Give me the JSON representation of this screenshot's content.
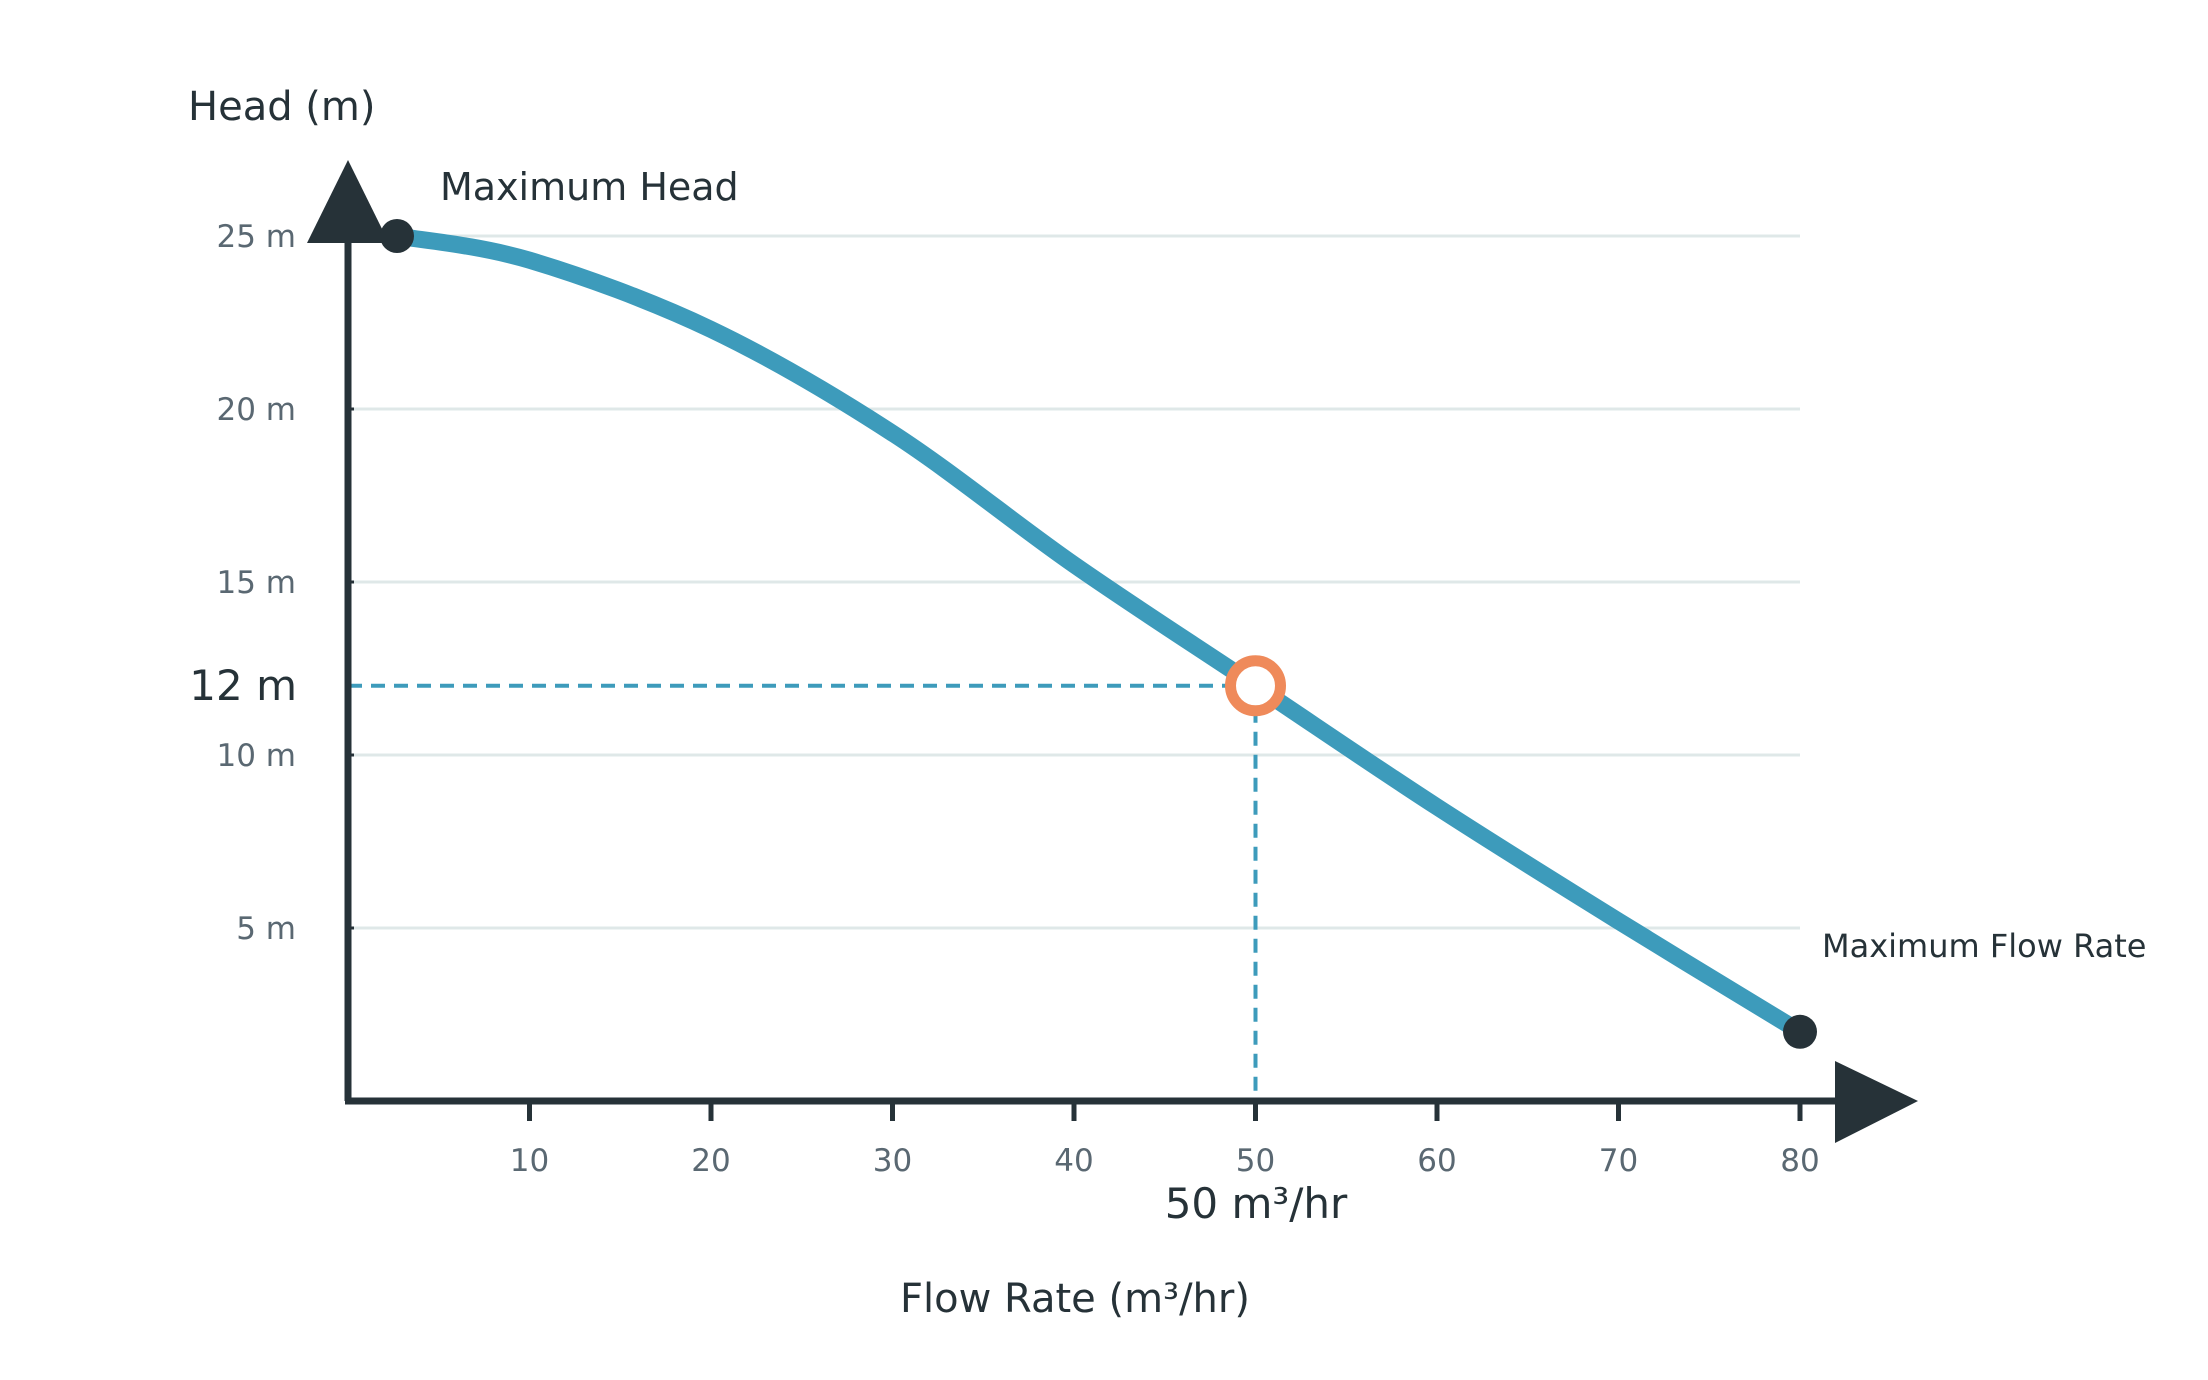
{
  "chart_data": {
    "type": "line",
    "xlabel": "Flow Rate (m³/hr)",
    "ylabel": "Head (m)",
    "xlim": [
      0,
      80
    ],
    "ylim": [
      0,
      25
    ],
    "x_ticks": [
      10,
      20,
      30,
      40,
      50,
      60,
      70,
      80
    ],
    "x_tick_labels": [
      "10",
      "20",
      "30",
      "40",
      "50",
      "60",
      "70",
      "80"
    ],
    "y_ticks": [
      5,
      10,
      15,
      20,
      25
    ],
    "y_tick_labels": [
      "5 m",
      "10 m",
      "15 m",
      "20 m",
      "25 m"
    ],
    "grid": "horizontal",
    "series": [
      {
        "x": [
          2.7,
          10,
          20,
          30,
          40,
          50,
          60,
          70,
          80
        ],
        "y": [
          25,
          24.3,
          22.3,
          19.3,
          15.5,
          12,
          8.5,
          5.2,
          2.0
        ],
        "color": "#3d9bbb"
      }
    ],
    "annotations": {
      "max_head": {
        "label": "Maximum Head",
        "x": 2.7,
        "y": 25
      },
      "max_flow": {
        "label": "Maximum Flow Rate",
        "x": 80,
        "y": 2.0
      },
      "operating_point": {
        "x": 50,
        "y": 12,
        "x_label": "50 m³/hr",
        "y_label": "12 m"
      }
    },
    "colors": {
      "curve": "#3d9bbb",
      "axis": "#263238",
      "grid": "#dfe8e8",
      "marker_end": "#263238",
      "operating_point": "#ef8a5a",
      "guide": "#3d9bbb"
    }
  }
}
